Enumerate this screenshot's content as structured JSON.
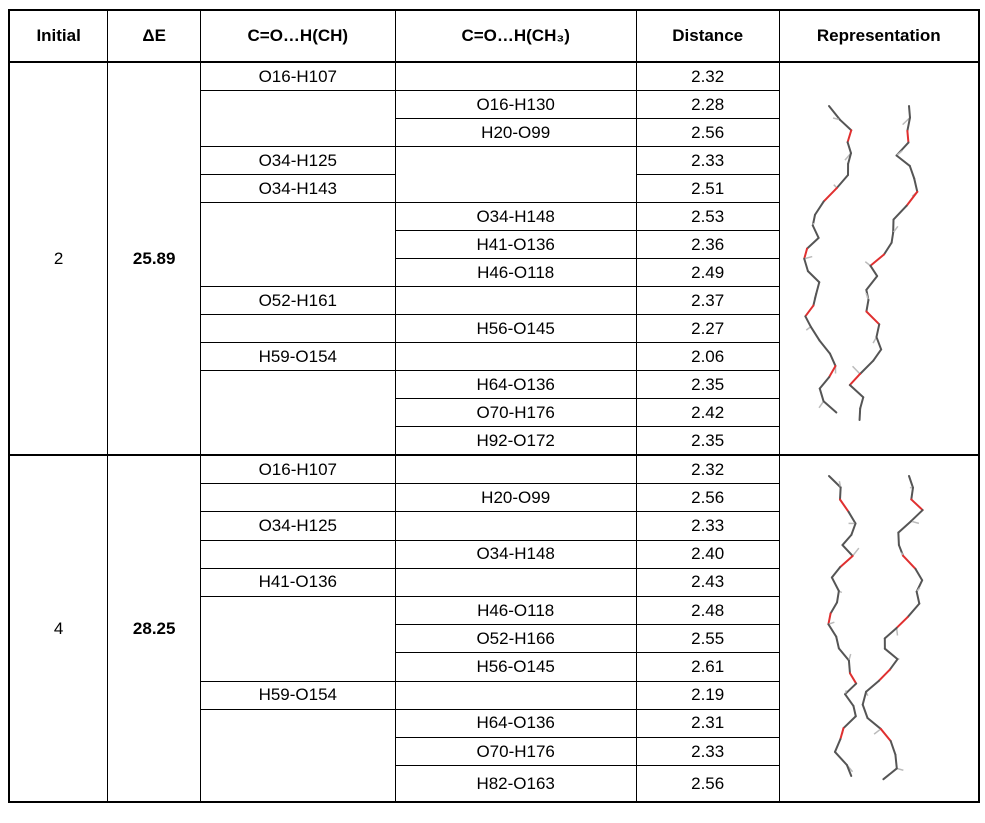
{
  "table": {
    "header": [
      "Initial",
      "ΔE",
      "C=O…H(CH)",
      "C=O…H(CH₃)",
      "Distance",
      "Representation"
    ],
    "groups": [
      {
        "initial": "2",
        "delta_e": "25.89",
        "rows": [
          {
            "ch": "O16-H107",
            "distance": "2.32"
          },
          {
            "ch3": "O16-H130",
            "distance": "2.28"
          },
          {
            "ch3": "H20-O99",
            "distance": "2.56"
          },
          {
            "ch": "O34-H125",
            "distance": "2.33"
          },
          {
            "ch": "O34-H143",
            "distance": "2.51"
          },
          {
            "ch3": "O34-H148",
            "distance": "2.53"
          },
          {
            "ch3": "H41-O136",
            "distance": "2.36"
          },
          {
            "ch3": "H46-O118",
            "distance": "2.49"
          },
          {
            "ch": "O52-H161",
            "distance": "2.37"
          },
          {
            "ch3": "H56-O145",
            "distance": "2.27"
          },
          {
            "ch": "H59-O154",
            "distance": "2.06"
          },
          {
            "ch3": "H64-O136",
            "distance": "2.35"
          },
          {
            "ch3": "O70-H176",
            "distance": "2.42"
          },
          {
            "ch3": "H92-O172",
            "distance": "2.35"
          }
        ]
      },
      {
        "initial": "4",
        "delta_e": "28.25",
        "rows": [
          {
            "ch": "O16-H107",
            "distance": "2.32"
          },
          {
            "ch3": "H20-O99",
            "distance": "2.56"
          },
          {
            "ch": "O34-H125",
            "distance": "2.33"
          },
          {
            "ch3": "O34-H148",
            "distance": "2.40"
          },
          {
            "ch": "H41-O136",
            "distance": "2.43"
          },
          {
            "ch3": "H46-O118",
            "distance": "2.48"
          },
          {
            "ch3": "O52-H166",
            "distance": "2.55"
          },
          {
            "ch3": "H56-O145",
            "distance": "2.61"
          },
          {
            "ch": "H59-O154",
            "distance": "2.19"
          },
          {
            "ch3": "H64-O136",
            "distance": "2.31"
          },
          {
            "ch3": "O70-H176",
            "distance": "2.33"
          },
          {
            "ch3": "H82-O163",
            "distance": "2.56"
          }
        ]
      }
    ]
  }
}
